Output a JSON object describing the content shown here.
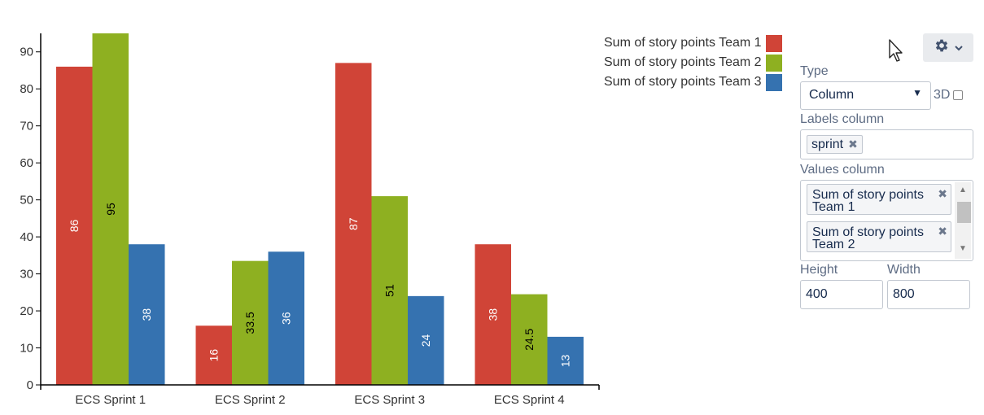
{
  "chart_data": {
    "type": "bar",
    "categories": [
      "ECS Sprint 1",
      "ECS Sprint 2",
      "ECS Sprint 3",
      "ECS Sprint 4"
    ],
    "series": [
      {
        "name": "Sum of story points Team 1",
        "values": [
          86,
          16,
          87,
          38
        ],
        "labels": [
          "86",
          "16",
          "87",
          "38"
        ],
        "color": "#d04437"
      },
      {
        "name": "Sum of story points Team 2",
        "values": [
          95,
          33.5,
          51,
          24.5
        ],
        "labels": [
          "95",
          "33.5",
          "51",
          "24.5"
        ],
        "color": "#8eb021"
      },
      {
        "name": "Sum of story points Team 3",
        "values": [
          38,
          36,
          24,
          13
        ],
        "labels": [
          "38",
          "36",
          "24",
          "13"
        ],
        "color": "#3572b0"
      }
    ],
    "y_ticks": [
      "0",
      "10",
      "20",
      "30",
      "40",
      "50",
      "60",
      "70",
      "80",
      "90"
    ],
    "ylim": [
      0,
      95
    ],
    "legend_position": "top-right"
  },
  "settings": {
    "type_label": "Type",
    "type_value": "Column",
    "threed_label": "3D",
    "threed_checked": false,
    "labels_column_label": "Labels column",
    "labels_column_tag": "sprint",
    "values_column_label": "Values column",
    "values_tags": [
      "Sum of story points Team 1",
      "Sum of story points Team 2"
    ],
    "height_label": "Height",
    "height_value": "400",
    "width_label": "Width",
    "width_value": "800"
  },
  "icons": {
    "gear": "gear-icon",
    "chevron": "chevron-down-icon",
    "remove": "close-icon",
    "cursor": "mouse-cursor-icon"
  }
}
